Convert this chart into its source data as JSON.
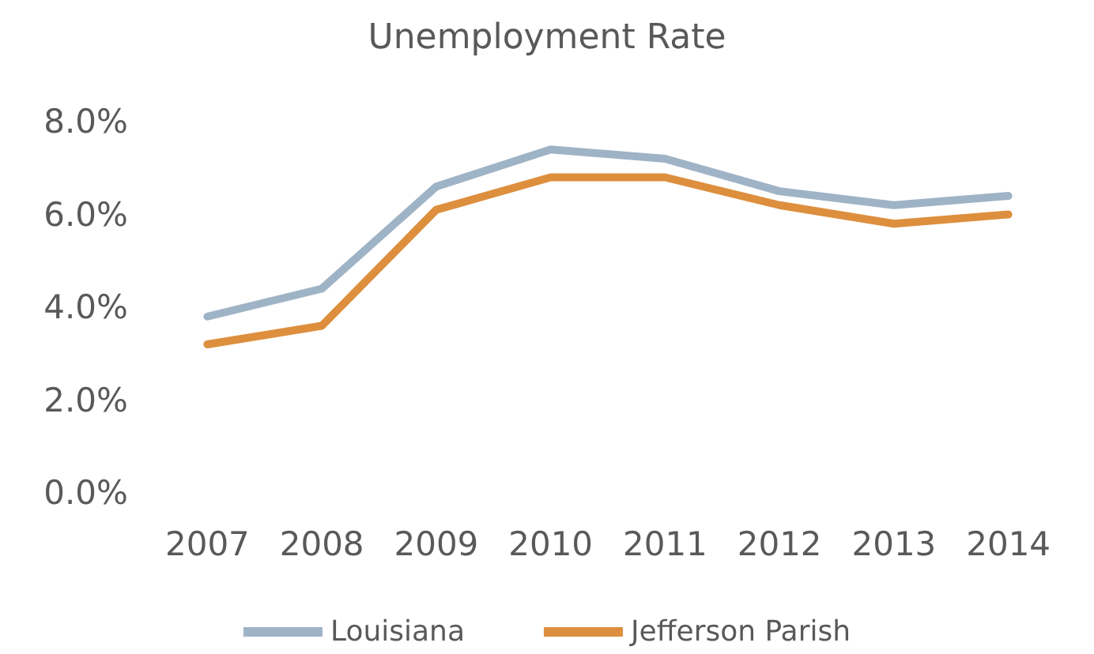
{
  "chart_data": {
    "type": "line",
    "title": "Unemployment Rate",
    "categories": [
      "2007",
      "2008",
      "2009",
      "2010",
      "2011",
      "2012",
      "2013",
      "2014"
    ],
    "series": [
      {
        "name": "Louisiana",
        "color": "#9fb3c6",
        "values": [
          3.8,
          4.4,
          6.6,
          7.4,
          7.2,
          6.5,
          6.2,
          6.4
        ]
      },
      {
        "name": "Jefferson Parish",
        "color": "#dd8f3e",
        "values": [
          3.2,
          3.6,
          6.1,
          6.8,
          6.8,
          6.2,
          5.8,
          6.0
        ]
      }
    ],
    "ylim": [
      0,
      8
    ],
    "yticks": [
      {
        "value": 0,
        "label": "0.0%"
      },
      {
        "value": 2,
        "label": "2.0%"
      },
      {
        "value": 4,
        "label": "4.0%"
      },
      {
        "value": 6,
        "label": "6.0%"
      },
      {
        "value": 8,
        "label": "8.0%"
      }
    ],
    "grid": false,
    "legend": "bottom",
    "marker": "none",
    "line_style": "solid"
  }
}
